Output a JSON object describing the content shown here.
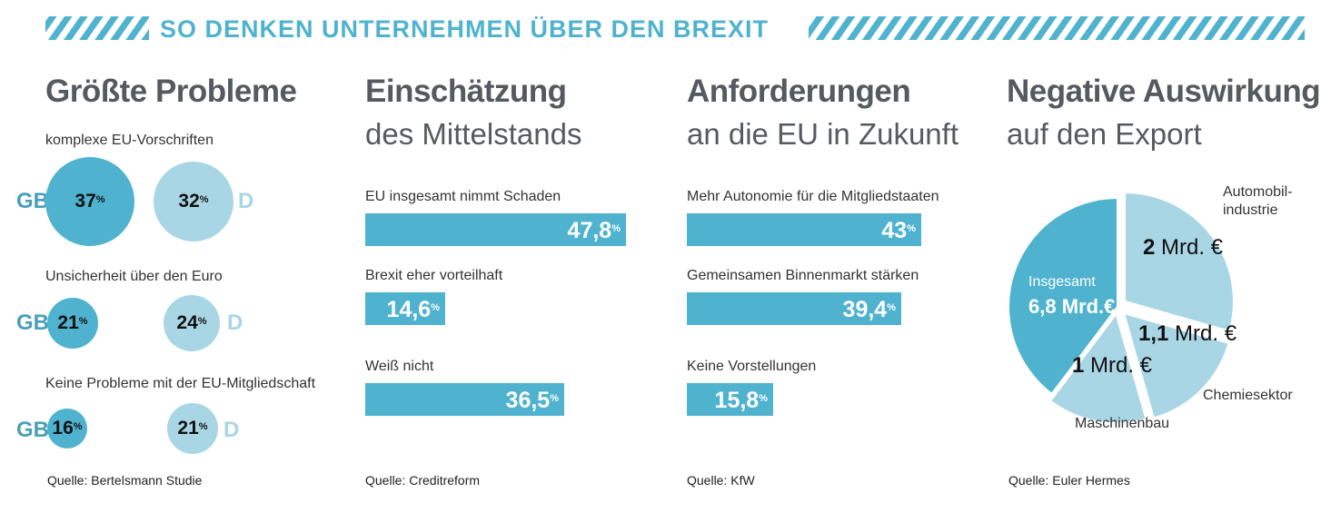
{
  "header": {
    "title": "SO DENKEN UNTERNEHMEN ÜBER DEN BREXIT"
  },
  "colors": {
    "accent": "#4fb3cf",
    "dark": "#4a9fba",
    "light": "#a9d6e5",
    "text": "#555a60"
  },
  "panel1": {
    "title": "Größte Probleme",
    "gb_label": "GB",
    "d_label": "D",
    "items": [
      {
        "label": "komplexe EU-Vorschriften",
        "gb": 37,
        "d": 32,
        "gb_text": "37",
        "d_text": "32"
      },
      {
        "label": "Unsicherheit über den Euro",
        "gb": 21,
        "d": 24,
        "gb_text": "21",
        "d_text": "24"
      },
      {
        "label": "Keine Probleme mit der EU-Mitgliedschaft",
        "gb": 16,
        "d": 21,
        "gb_text": "16",
        "d_text": "21"
      }
    ],
    "pct": "%",
    "source": "Quelle: Bertelsmann Studie"
  },
  "panel2": {
    "title": "Einschätzung",
    "subtitle": "des Mittelstands",
    "source": "Quelle: Creditreform"
  },
  "panel3": {
    "title": "Anforderungen",
    "subtitle": "an die EU in Zukunft",
    "source": "Quelle: KfW"
  },
  "panel4": {
    "title": "Negative Auswirkungen",
    "subtitle": "auf den Export",
    "total_label": "Insgesamt",
    "total_value": "6,8",
    "total_unit": "Mrd.€",
    "source": "Quelle: Euler Hermes"
  },
  "chart_data": [
    {
      "type": "bar",
      "orientation": "horizontal",
      "title": "Einschätzung des Mittelstands",
      "categories": [
        "EU insgesamt nimmt Schaden",
        "Brexit eher vorteilhaft",
        "Weiß nicht"
      ],
      "values": [
        47.8,
        14.6,
        36.5
      ],
      "value_labels": [
        "47,8",
        "14,6",
        "36,5"
      ],
      "unit": "%"
    },
    {
      "type": "bar",
      "orientation": "horizontal",
      "title": "Anforderungen an die EU in Zukunft",
      "categories": [
        "Mehr Autonomie für die Mitgliedstaaten",
        "Gemeinsamen Binnenmarkt stärken",
        "Keine Vorstellungen"
      ],
      "values": [
        43,
        39.4,
        15.8
      ],
      "value_labels": [
        "43",
        "39,4",
        "15,8"
      ],
      "unit": "%"
    },
    {
      "type": "pie",
      "title": "Negative Auswirkungen auf den Export",
      "total": 6.8,
      "slices": [
        {
          "name": "Automobil-industrie",
          "name_line1": "Automobil-",
          "name_line2": "industrie",
          "value": 2,
          "label": "2",
          "unit": "Mrd. €"
        },
        {
          "name": "Chemiesektor",
          "value": 1.1,
          "label": "1,1",
          "unit": "Mrd. €"
        },
        {
          "name": "Maschinenbau",
          "value": 1,
          "label": "1",
          "unit": "Mrd. €"
        }
      ]
    }
  ]
}
